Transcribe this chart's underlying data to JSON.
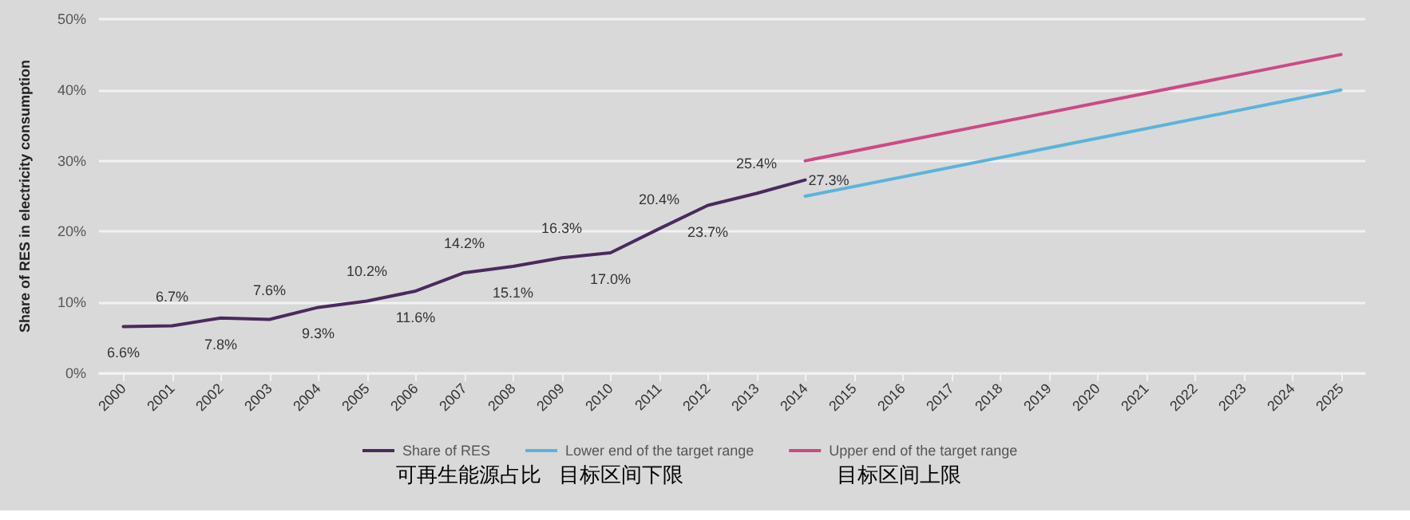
{
  "chart_data": {
    "type": "line",
    "ylabel": "Share of RES in electricity consumption",
    "categories": [
      "2000",
      "2001",
      "2002",
      "2003",
      "2004",
      "2005",
      "2006",
      "2007",
      "2008",
      "2009",
      "2010",
      "2011",
      "2012",
      "2013",
      "2014",
      "2015",
      "2016",
      "2017",
      "2018",
      "2019",
      "2020",
      "2021",
      "2022",
      "2023",
      "2024",
      "2025"
    ],
    "series": [
      {
        "name": "Share of RES",
        "color": "#4a2a5e",
        "values": [
          6.6,
          6.7,
          7.8,
          7.6,
          9.3,
          10.2,
          11.6,
          14.2,
          15.1,
          16.3,
          17.0,
          20.4,
          23.7,
          25.4,
          27.3,
          null,
          null,
          null,
          null,
          null,
          null,
          null,
          null,
          null,
          null,
          null
        ],
        "value_labels": [
          "6.6%",
          "6.7%",
          "7.8%",
          "7.6%",
          "9.3%",
          "10.2%",
          "11.6%",
          "14.2%",
          "15.1%",
          "16.3%",
          "17.0%",
          "20.4%",
          "23.7%",
          "25.4%",
          "27.3%",
          null,
          null,
          null,
          null,
          null,
          null,
          null,
          null,
          null,
          null,
          null
        ]
      },
      {
        "name": "Lower end of the target range",
        "color": "#5ab4dc",
        "values": [
          null,
          null,
          null,
          null,
          null,
          null,
          null,
          null,
          null,
          null,
          null,
          null,
          null,
          null,
          25,
          null,
          null,
          null,
          null,
          null,
          null,
          null,
          null,
          null,
          null,
          40
        ]
      },
      {
        "name": "Upper end of the target range",
        "color": "#cc4a86",
        "values": [
          null,
          null,
          null,
          null,
          null,
          null,
          null,
          null,
          null,
          null,
          null,
          null,
          null,
          null,
          30,
          null,
          null,
          null,
          null,
          null,
          null,
          null,
          null,
          null,
          null,
          45
        ]
      }
    ],
    "ylim": [
      0,
      50
    ],
    "yticks": [
      {
        "value": 0,
        "label": "0%"
      },
      {
        "value": 10,
        "label": "10%"
      },
      {
        "value": 20,
        "label": "20%"
      },
      {
        "value": 30,
        "label": "30%"
      },
      {
        "value": 40,
        "label": "40%"
      },
      {
        "value": 50,
        "label": "50%"
      }
    ],
    "grid": "y",
    "legend": "bottom",
    "marker": "none",
    "line_style": "solid",
    "annotations": [
      "可再生能源占比",
      "目标区间下限",
      "目标区间上限"
    ]
  }
}
